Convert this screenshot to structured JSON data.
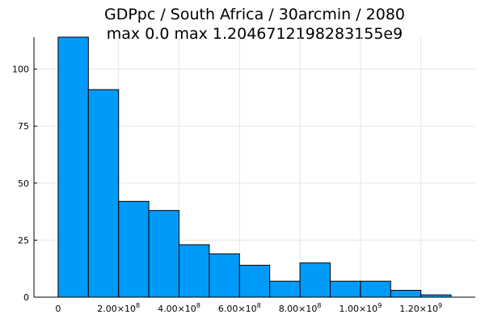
{
  "chart_data": {
    "type": "bar",
    "title_lines": [
      "GDPpc / South Africa / 30arcmin / 2080",
      "max 0.0  max 1.2046712198283155e9"
    ],
    "bin_edges": [
      0,
      100000000,
      200000000,
      300000000,
      400000000,
      500000000,
      600000000,
      700000000,
      800000000,
      900000000,
      1000000000,
      1100000000,
      1200000000,
      1300000000
    ],
    "values": [
      114,
      91,
      42,
      38,
      23,
      19,
      14,
      7,
      15,
      7,
      7,
      3,
      1
    ],
    "xlim": [
      -80000000,
      1380000000
    ],
    "ylim": [
      0,
      114
    ],
    "x_ticks": [
      {
        "value": 0,
        "label": "0",
        "exp": ""
      },
      {
        "value": 200000000,
        "label": "2.00×10",
        "exp": "8"
      },
      {
        "value": 400000000,
        "label": "4.00×10",
        "exp": "8"
      },
      {
        "value": 600000000,
        "label": "6.00×10",
        "exp": "8"
      },
      {
        "value": 800000000,
        "label": "8.00×10",
        "exp": "8"
      },
      {
        "value": 1000000000,
        "label": "1.00×10",
        "exp": "9"
      },
      {
        "value": 1200000000,
        "label": "1.20×10",
        "exp": "9"
      }
    ],
    "y_ticks": [
      {
        "value": 0,
        "label": "0"
      },
      {
        "value": 25,
        "label": "25"
      },
      {
        "value": 50,
        "label": "50"
      },
      {
        "value": 75,
        "label": "75"
      },
      {
        "value": 100,
        "label": "100"
      }
    ],
    "grid": true,
    "bar_color": "#009af9",
    "legend": "none"
  }
}
